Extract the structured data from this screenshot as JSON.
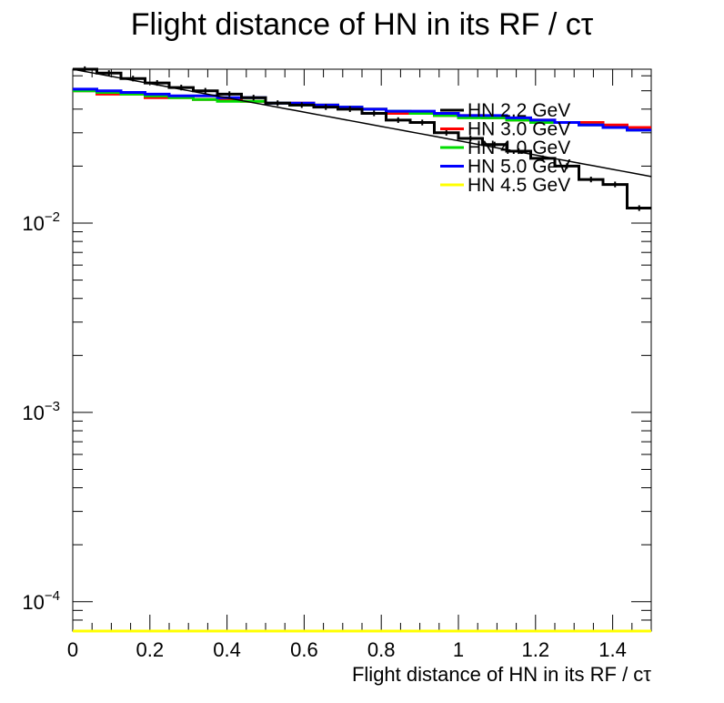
{
  "chart_data": {
    "type": "line",
    "title": "Flight distance of HN in its RF / cτ",
    "xlabel": "Flight distance of HN in its RF / cτ",
    "ylabel": "",
    "xlim": [
      0,
      1.5
    ],
    "ylim": [
      7e-05,
      0.065
    ],
    "yscale": "log",
    "grid": false,
    "legend_position": "top-right",
    "x_ticks": [
      {
        "value": 0,
        "label": "0"
      },
      {
        "value": 0.2,
        "label": "0.2"
      },
      {
        "value": 0.4,
        "label": "0.4"
      },
      {
        "value": 0.6,
        "label": "0.6"
      },
      {
        "value": 0.8,
        "label": "0.8"
      },
      {
        "value": 1.0,
        "label": "1"
      },
      {
        "value": 1.2,
        "label": "1.2"
      },
      {
        "value": 1.4,
        "label": "1.4"
      }
    ],
    "y_ticks": [
      {
        "value": 0.01,
        "base": "10",
        "exp": "−2"
      },
      {
        "value": 0.001,
        "base": "10",
        "exp": "−3"
      },
      {
        "value": 0.0001,
        "base": "10",
        "exp": "−4"
      }
    ],
    "bin_edges": [
      0,
      0.0625,
      0.125,
      0.1875,
      0.25,
      0.3125,
      0.375,
      0.4375,
      0.5,
      0.5625,
      0.625,
      0.6875,
      0.75,
      0.8125,
      0.875,
      0.9375,
      1.0,
      1.0625,
      1.125,
      1.1875,
      1.25,
      1.3125,
      1.375,
      1.4375,
      1.5
    ],
    "series": [
      {
        "name": "HN 2.2 GeV",
        "color": "#000000",
        "values": [
          0.065,
          0.062,
          0.058,
          0.055,
          0.052,
          0.05,
          0.048,
          0.046,
          0.043,
          0.042,
          0.041,
          0.04,
          0.038,
          0.035,
          0.034,
          0.03,
          0.028,
          0.026,
          0.024,
          0.022,
          0.02,
          0.017,
          0.016,
          0.012
        ],
        "fit": {
          "a": 0.065,
          "b": 0.87
        }
      },
      {
        "name": "HN 3.0 GeV",
        "color": "#ff0000",
        "values": [
          0.05,
          0.048,
          0.048,
          0.046,
          0.046,
          0.045,
          0.045,
          0.044,
          0.043,
          0.043,
          0.042,
          0.041,
          0.04,
          0.038,
          0.038,
          0.037,
          0.037,
          0.036,
          0.035,
          0.035,
          0.034,
          0.034,
          0.033,
          0.032
        ]
      },
      {
        "name": "HN 4.0 GeV",
        "color": "#00dd00",
        "values": [
          0.05,
          0.049,
          0.048,
          0.047,
          0.046,
          0.045,
          0.044,
          0.044,
          0.043,
          0.042,
          0.042,
          0.041,
          0.04,
          0.039,
          0.038,
          0.037,
          0.036,
          0.036,
          0.035,
          0.034,
          0.034,
          0.033,
          0.032,
          0.031
        ]
      },
      {
        "name": "HN 5.0 GeV",
        "color": "#0000ff",
        "values": [
          0.051,
          0.05,
          0.049,
          0.048,
          0.047,
          0.047,
          0.046,
          0.046,
          0.043,
          0.043,
          0.042,
          0.041,
          0.04,
          0.039,
          0.039,
          0.038,
          0.037,
          0.037,
          0.036,
          0.035,
          0.034,
          0.033,
          0.032,
          0.031
        ]
      },
      {
        "name": "HN 4.5 GeV",
        "color": "#ffff00",
        "values": [
          7e-05,
          7e-05,
          7e-05,
          7e-05,
          7e-05,
          7e-05,
          7e-05,
          7e-05,
          7e-05,
          7e-05,
          7e-05,
          7e-05,
          7e-05,
          7e-05,
          7e-05,
          7e-05,
          7e-05,
          7e-05,
          7e-05,
          7e-05,
          7e-05,
          7e-05,
          7e-05,
          7e-05
        ]
      }
    ]
  }
}
